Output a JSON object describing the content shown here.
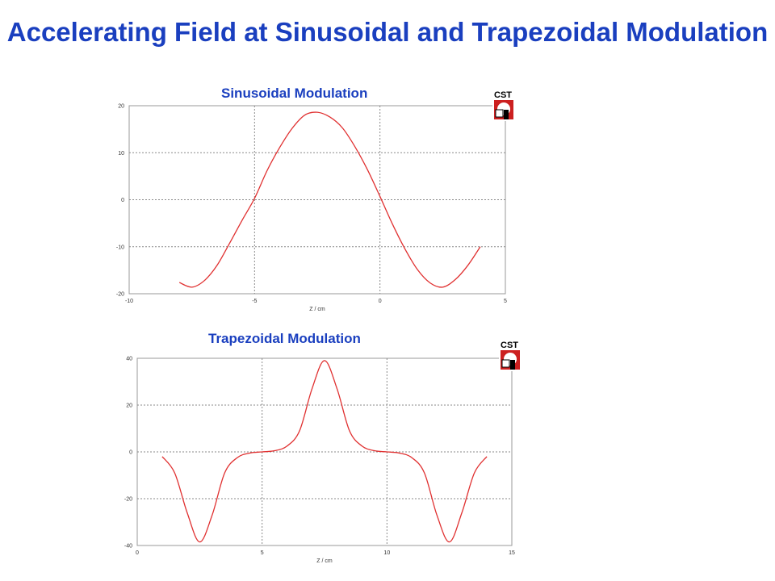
{
  "title": "Accelerating Field at Sinusoidal and Trapezoidal Modulation",
  "logo_text": "CST",
  "chart_data": [
    {
      "type": "line",
      "title": "Sinusoidal Modulation",
      "xlabel": "Z / cm",
      "ylabel": "",
      "xlim": [
        -10,
        5
      ],
      "ylim": [
        -20,
        20
      ],
      "xticks": [
        -10,
        -5,
        0,
        5
      ],
      "yticks": [
        -20,
        -10,
        0,
        10,
        20
      ],
      "grid": true,
      "series": [
        {
          "color": "#e03030",
          "x": [
            -8,
            -7.5,
            -7,
            -6.5,
            -6,
            -5.5,
            -5,
            -4.5,
            -4,
            -3.5,
            -3,
            -2.5,
            -2,
            -1.5,
            -1,
            -0.5,
            0,
            0.5,
            1,
            1.5,
            2,
            2.5,
            3,
            3.5,
            4
          ],
          "y": [
            -17.6,
            -18.6,
            -17.2,
            -14.0,
            -9.3,
            -4.4,
            0.3,
            6.2,
            11.1,
            15.2,
            18.0,
            18.6,
            17.6,
            15.3,
            11.3,
            6.4,
            0.7,
            -5.2,
            -10.5,
            -14.9,
            -17.7,
            -18.6,
            -17.0,
            -14.0,
            -10.0
          ]
        }
      ]
    },
    {
      "type": "line",
      "title": "Trapezoidal Modulation",
      "xlabel": "Z / cm",
      "ylabel": "",
      "xlim": [
        0,
        15
      ],
      "ylim": [
        -40,
        40
      ],
      "xticks": [
        0,
        5,
        10,
        15
      ],
      "yticks": [
        -40,
        -20,
        0,
        20,
        40
      ],
      "grid": true,
      "series": [
        {
          "color": "#e03030",
          "x": [
            1,
            1.5,
            2,
            2.5,
            3,
            3.5,
            4,
            4.5,
            5,
            5.5,
            6,
            6.5,
            7,
            7.5,
            8,
            8.5,
            9,
            9.5,
            10,
            10.5,
            11,
            11.5,
            12,
            12.5,
            13,
            13.5,
            14
          ],
          "y": [
            -2,
            -9,
            -26,
            -38.5,
            -27,
            -9,
            -2.5,
            -0.5,
            0,
            0.5,
            2.5,
            9,
            27,
            39,
            27,
            9,
            2.5,
            0.5,
            0,
            -0.5,
            -2.5,
            -9,
            -27,
            -38.5,
            -26,
            -9,
            -2
          ]
        }
      ]
    }
  ]
}
